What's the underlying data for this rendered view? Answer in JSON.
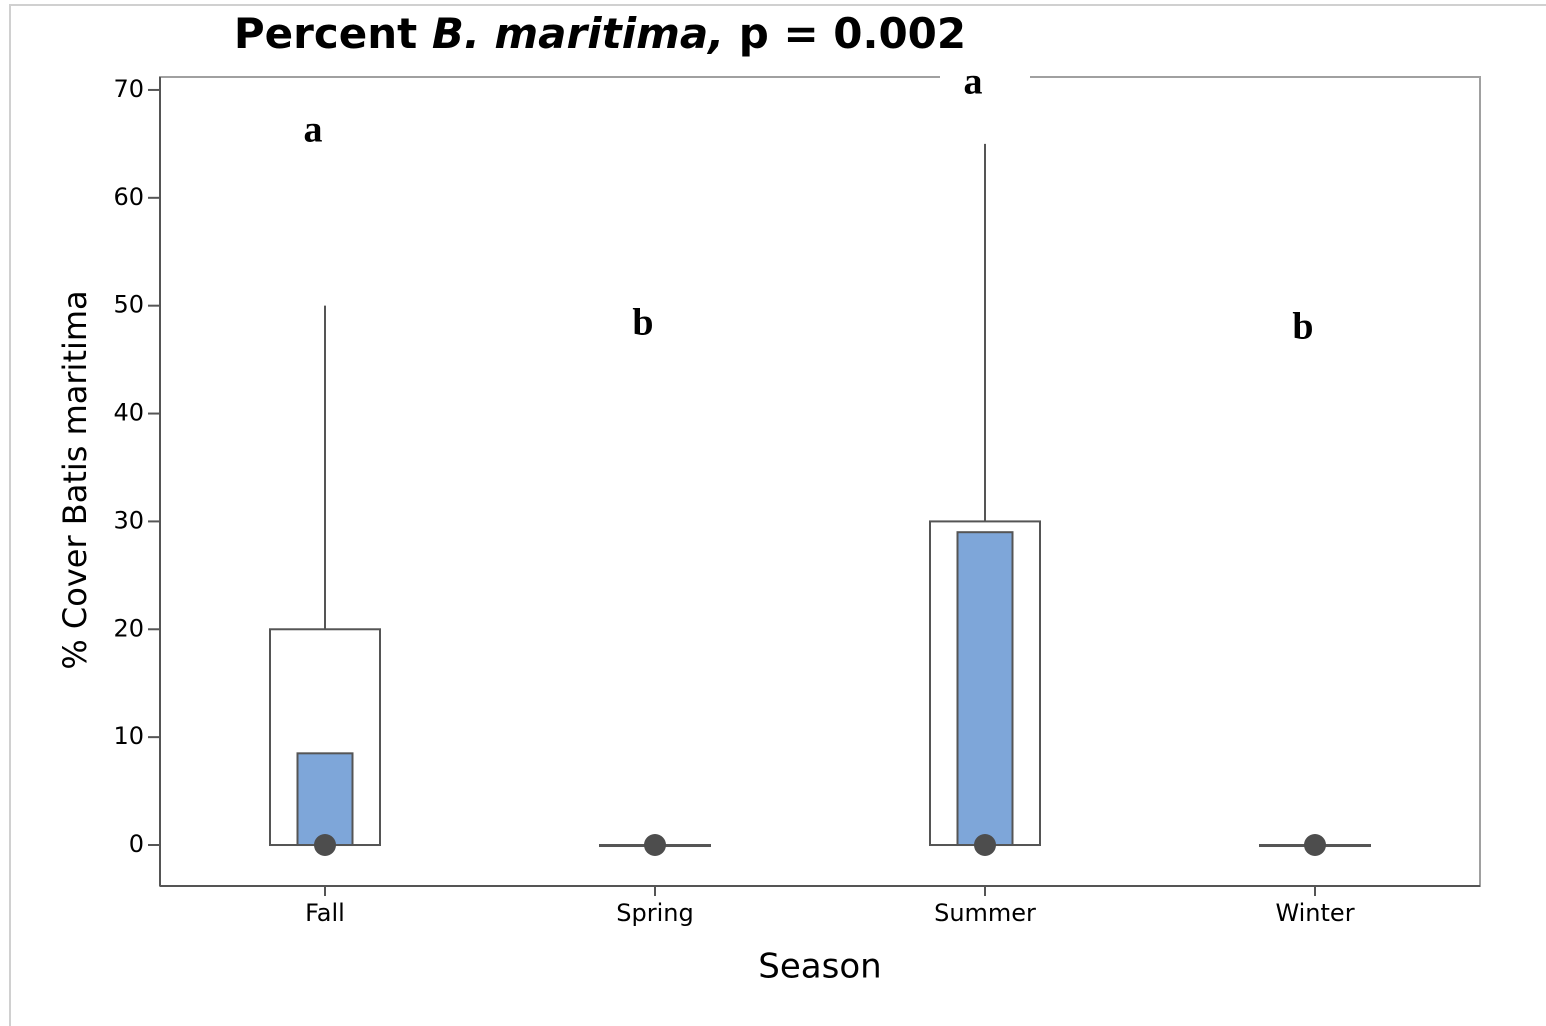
{
  "chart_data": {
    "type": "box",
    "title": [
      "Percent",
      "B. maritima,",
      "p = 0.002"
    ],
    "x_label": "Season",
    "y_label": "% Cover Batis maritima",
    "categories": [
      "Fall",
      "Spring",
      "Summer",
      "Winter"
    ],
    "whisker_low": [
      0,
      0,
      0,
      0
    ],
    "q1": [
      0,
      0,
      0,
      0
    ],
    "median": [
      0,
      0,
      0,
      0
    ],
    "q3": [
      20,
      0,
      30,
      0
    ],
    "whisker_high": [
      50,
      0,
      65,
      0
    ],
    "ci_low": [
      0,
      0,
      0,
      0
    ],
    "ci_high": [
      8.5,
      0,
      29,
      0
    ],
    "annotations": [
      "a",
      "b",
      "a",
      "b"
    ],
    "box_color": "#ffffff",
    "ci_color": "#7ea6d9",
    "ylim": [
      -3.8,
      71.2
    ],
    "yticks": [
      0,
      10,
      20,
      30,
      40,
      50,
      60,
      70
    ]
  }
}
